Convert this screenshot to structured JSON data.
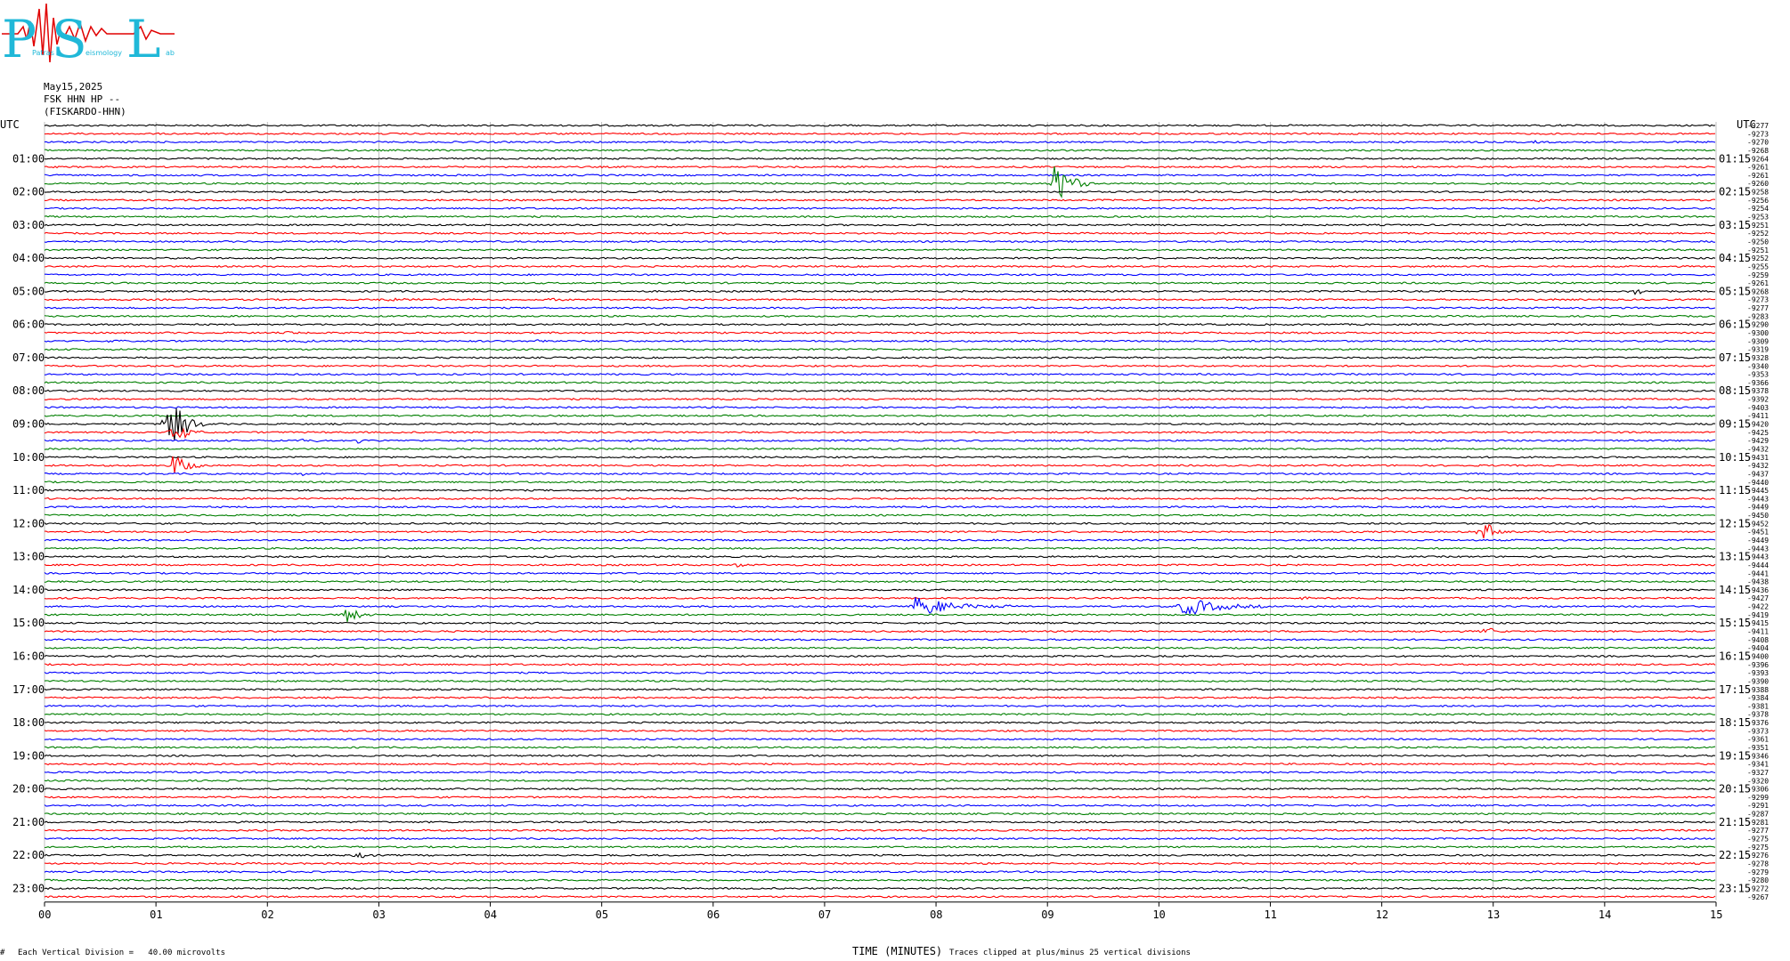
{
  "logo": {
    "letters": [
      "P",
      "S",
      "L"
    ],
    "tagline_1": "Patras",
    "tagline_2": "eismology",
    "tagline_3": "ab"
  },
  "header": {
    "date": "May15,2025",
    "station": "FSK HHN HP --",
    "site": "(FISKARDO-HHN)"
  },
  "axes": {
    "left_unit": "UTC",
    "right_unit": "UTC",
    "xlabel": "TIME (MINUTES)",
    "x_ticks": [
      "00",
      "01",
      "02",
      "03",
      "04",
      "05",
      "06",
      "07",
      "08",
      "09",
      "10",
      "11",
      "12",
      "13",
      "14",
      "15"
    ],
    "left_hours": [
      "01:00",
      "02:00",
      "03:00",
      "04:00",
      "05:00",
      "06:00",
      "07:00",
      "08:00",
      "09:00",
      "10:00",
      "11:00",
      "12:00",
      "13:00",
      "14:00",
      "15:00",
      "16:00",
      "17:00",
      "18:00",
      "19:00",
      "20:00",
      "21:00",
      "22:00",
      "23:00"
    ],
    "right_hours": [
      "01:15",
      "02:15",
      "03:15",
      "04:15",
      "05:15",
      "06:15",
      "07:15",
      "08:15",
      "09:15",
      "10:15",
      "11:15",
      "12:15",
      "13:15",
      "14:15",
      "15:15",
      "16:15",
      "17:15",
      "18:15",
      "19:15",
      "20:15",
      "21:15",
      "22:15",
      "23:15"
    ]
  },
  "footer": {
    "scale": "Each Vertical Division =   40.00 microvolts",
    "clip": "Traces clipped at plus/minus 25 vertical divisions",
    "corner": "#"
  },
  "chart_data": {
    "type": "line",
    "title": "May15,2025 FSK HHN HP -- (FISKARDO-HHN)",
    "xlabel": "TIME (MINUTES)",
    "ylabel": "UTC",
    "xlim": [
      0,
      15
    ],
    "traces_per_hour": 4,
    "trace_minutes": 15,
    "trace_colors": [
      "#000000",
      "#ff0000",
      "#0000ff",
      "#007f00"
    ],
    "offsets": [
      -9277,
      -9273,
      -9270,
      -9268,
      -9264,
      -9261,
      -9261,
      -9260,
      -9258,
      -9256,
      -9254,
      -9253,
      -9251,
      -9252,
      -9250,
      -9251,
      -9252,
      -9255,
      -9259,
      -9261,
      -9268,
      -9273,
      -9277,
      -9283,
      -9290,
      -9300,
      -9309,
      -9319,
      -9328,
      -9340,
      -9353,
      -9366,
      -9378,
      -9392,
      -9403,
      -9411,
      -9420,
      -9425,
      -9429,
      -9432,
      -9431,
      -9432,
      -9437,
      -9440,
      -9445,
      -9443,
      -9449,
      -9450,
      -9452,
      -9451,
      -9449,
      -9443,
      -9443,
      -9444,
      -9441,
      -9438,
      -9436,
      -9427,
      -9422,
      -9419,
      -9415,
      -9411,
      -9408,
      -9404,
      -9400,
      -9396,
      -9393,
      -9390,
      -9388,
      -9384,
      -9381,
      -9378,
      -9376,
      -9373,
      -9361,
      -9351,
      -9346,
      -9341,
      -9327,
      -9320,
      -9306,
      -9299,
      -9291,
      -9287,
      -9281,
      -9277,
      -9275,
      -9275,
      -9276,
      -9278,
      -9279,
      -9280,
      -9272,
      -9267
    ],
    "events": [
      {
        "trace": 0,
        "minute": 13.6,
        "amp": 1.5,
        "dur": 0.2
      },
      {
        "trace": 2,
        "minute": 13.35,
        "amp": 1.5,
        "dur": 0.2
      },
      {
        "trace": 7,
        "minute": 9.05,
        "amp": 30,
        "dur": 0.35
      },
      {
        "trace": 9,
        "minute": 13.4,
        "amp": 4,
        "dur": 0.2
      },
      {
        "trace": 20,
        "minute": 14.25,
        "amp": 6,
        "dur": 0.2
      },
      {
        "trace": 21,
        "minute": 3.0,
        "amp": 1.5,
        "dur": 1.8
      },
      {
        "trace": 21,
        "minute": 4.5,
        "amp": 2,
        "dur": 0.3
      },
      {
        "trace": 22,
        "minute": 10.8,
        "amp": 1.5,
        "dur": 0.2
      },
      {
        "trace": 25,
        "minute": 2.15,
        "amp": 2,
        "dur": 0.3
      },
      {
        "trace": 26,
        "minute": 0.6,
        "amp": 2,
        "dur": 0.2
      },
      {
        "trace": 26,
        "minute": 2.3,
        "amp": 1.5,
        "dur": 0.3
      },
      {
        "trace": 26,
        "minute": 4.4,
        "amp": 1.5,
        "dur": 0.3
      },
      {
        "trace": 36,
        "minute": 1.1,
        "amp": 40,
        "dur": 0.35
      },
      {
        "trace": 37,
        "minute": 1.15,
        "amp": 15,
        "dur": 0.3
      },
      {
        "trace": 38,
        "minute": 2.3,
        "amp": 2,
        "dur": 0.5
      },
      {
        "trace": 38,
        "minute": 2.8,
        "amp": 5,
        "dur": 0.2
      },
      {
        "trace": 38,
        "minute": 5.2,
        "amp": 2.5,
        "dur": 0.4
      },
      {
        "trace": 41,
        "minute": 1.15,
        "amp": 15,
        "dur": 0.3
      },
      {
        "trace": 42,
        "minute": 2.3,
        "amp": 3,
        "dur": 0.2
      },
      {
        "trace": 44,
        "minute": 13.0,
        "amp": 1.5,
        "dur": 0.3
      },
      {
        "trace": 48,
        "minute": 11.3,
        "amp": 1.5,
        "dur": 0.3
      },
      {
        "trace": 49,
        "minute": 12.9,
        "amp": 22,
        "dur": 0.2
      },
      {
        "trace": 53,
        "minute": 6.2,
        "amp": 3,
        "dur": 0.2
      },
      {
        "trace": 57,
        "minute": 11.2,
        "amp": 1.5,
        "dur": 0.4
      },
      {
        "trace": 58,
        "minute": 7.8,
        "amp": 12,
        "dur": 1.0
      },
      {
        "trace": 58,
        "minute": 10.2,
        "amp": 12,
        "dur": 0.8
      },
      {
        "trace": 59,
        "minute": 2.7,
        "amp": 12,
        "dur": 0.3
      },
      {
        "trace": 61,
        "minute": 12.9,
        "amp": 7,
        "dur": 0.3
      },
      {
        "trace": 61,
        "minute": 12.5,
        "amp": 4,
        "dur": 0.1
      },
      {
        "trace": 84,
        "minute": 12.6,
        "amp": 2,
        "dur": 0.3
      },
      {
        "trace": 84,
        "minute": 13.1,
        "amp": 1.5,
        "dur": 0.3
      },
      {
        "trace": 85,
        "minute": 11.2,
        "amp": 1.5,
        "dur": 0.2
      },
      {
        "trace": 88,
        "minute": 2.8,
        "amp": 5,
        "dur": 0.2
      },
      {
        "trace": 89,
        "minute": 1.7,
        "amp": 3,
        "dur": 0.2
      },
      {
        "trace": 92,
        "minute": 10.6,
        "amp": 1.5,
        "dur": 0.4
      }
    ]
  }
}
